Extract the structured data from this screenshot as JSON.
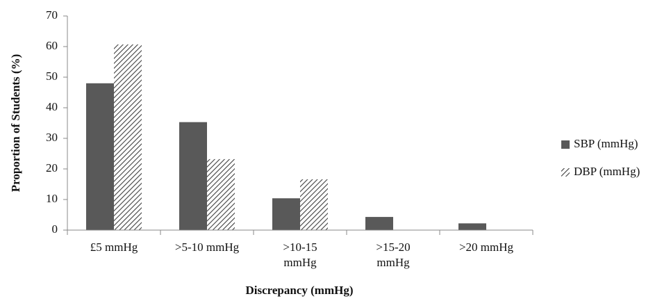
{
  "chart_data": {
    "type": "bar",
    "y_label": "Proportion of Students (%)",
    "x_label": "Discrepancy (mmHg)",
    "categories": [
      "£5 mmHg",
      ">5-10 mmHg",
      ">10-15\nmmHg",
      ">15-20\nmmHg",
      ">20 mmHg"
    ],
    "series": [
      {
        "name": "SBP (mmHg)",
        "color": "#595959",
        "pattern": "solid",
        "values": [
          48,
          35.3,
          10.4,
          4.3,
          2.2
        ]
      },
      {
        "name": "DBP (mmHg)",
        "color": "#404040",
        "pattern": "hatch",
        "values": [
          60.7,
          23.2,
          16.6,
          0,
          0
        ]
      }
    ],
    "ylim": [
      0,
      70
    ],
    "yticks": [
      0,
      10,
      20,
      30,
      40,
      50,
      60,
      70
    ],
    "grid": false,
    "legend": "right"
  }
}
